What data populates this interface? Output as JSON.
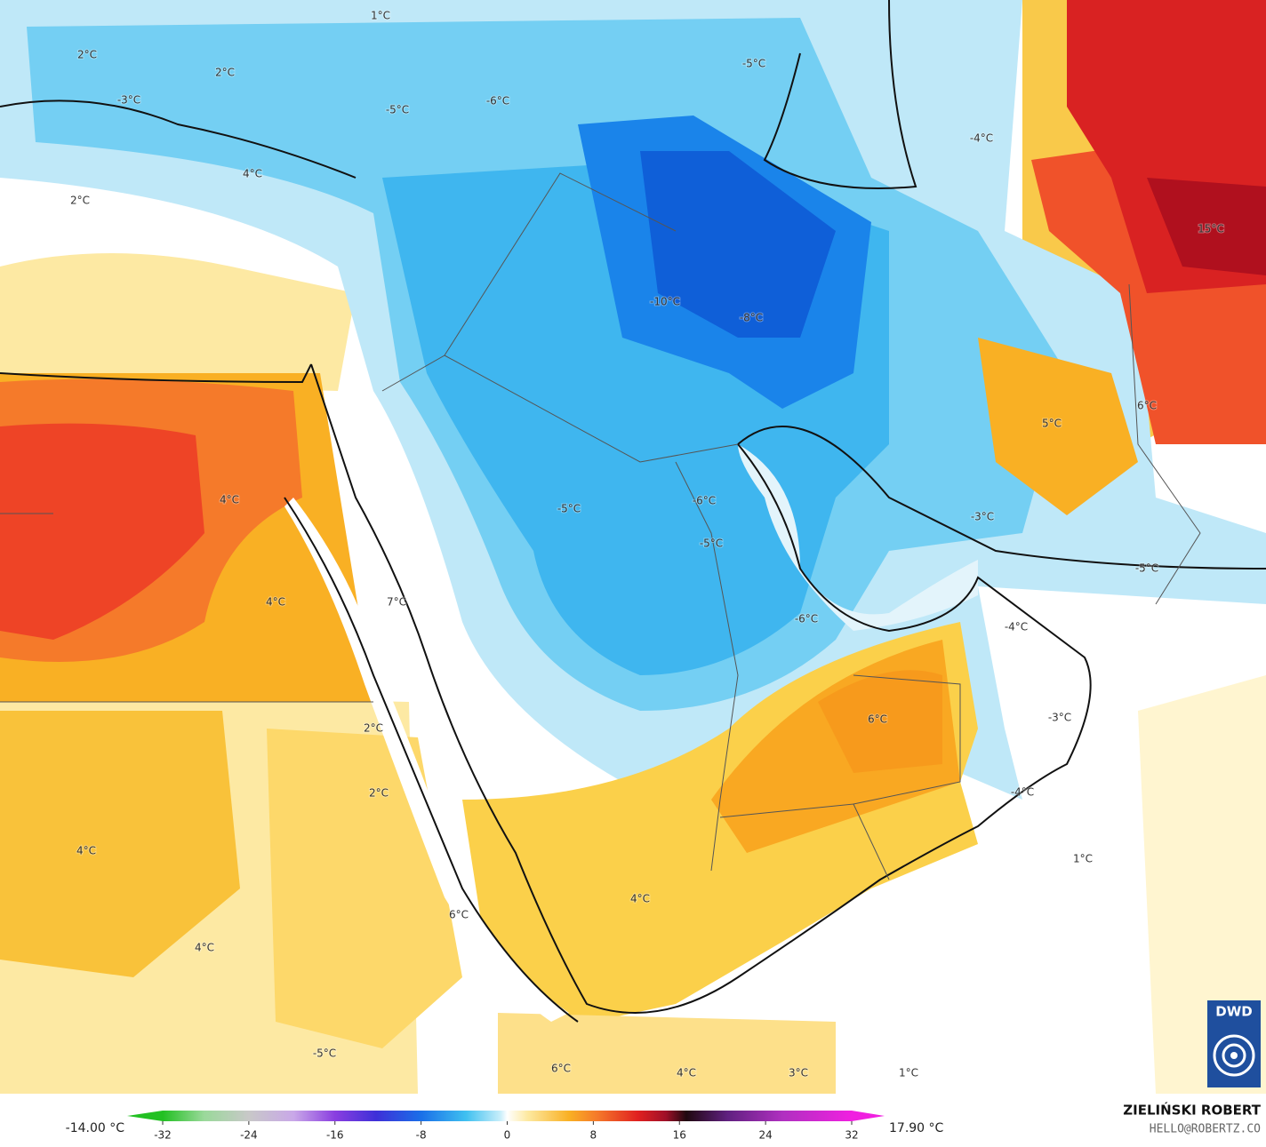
{
  "map_labels": [
    "1°C",
    "2°C",
    "2°C",
    "-3°C",
    "-5°C",
    "-6°C",
    "-5°C",
    "4°C",
    "2°C",
    "-4°C",
    "15°C",
    "-10°C",
    "-8°C",
    "5°C",
    "6°C",
    "4°C",
    "-5°C",
    "-6°C",
    "-5°C",
    "-3°C",
    "-5°C",
    "4°C",
    "7°C",
    "-6°C",
    "-4°C",
    "6°C",
    "-3°C",
    "2°C",
    "2°C",
    "-4°C",
    "4°C",
    "1°C",
    "4°C",
    "6°C",
    "4°C",
    "-5°C",
    "6°C",
    "4°C",
    "3°C",
    "1°C"
  ],
  "colorbar": {
    "min_label": "-14.00 °C",
    "max_label": "17.90 °C",
    "ticks": [
      -32,
      -24,
      -16,
      -8,
      0,
      8,
      16,
      24,
      32
    ]
  },
  "credit": {
    "author": "ZIELIŃSKI ROBERT",
    "email": "HELLO@ROBERTZ.CO"
  },
  "logo": "DWD"
}
